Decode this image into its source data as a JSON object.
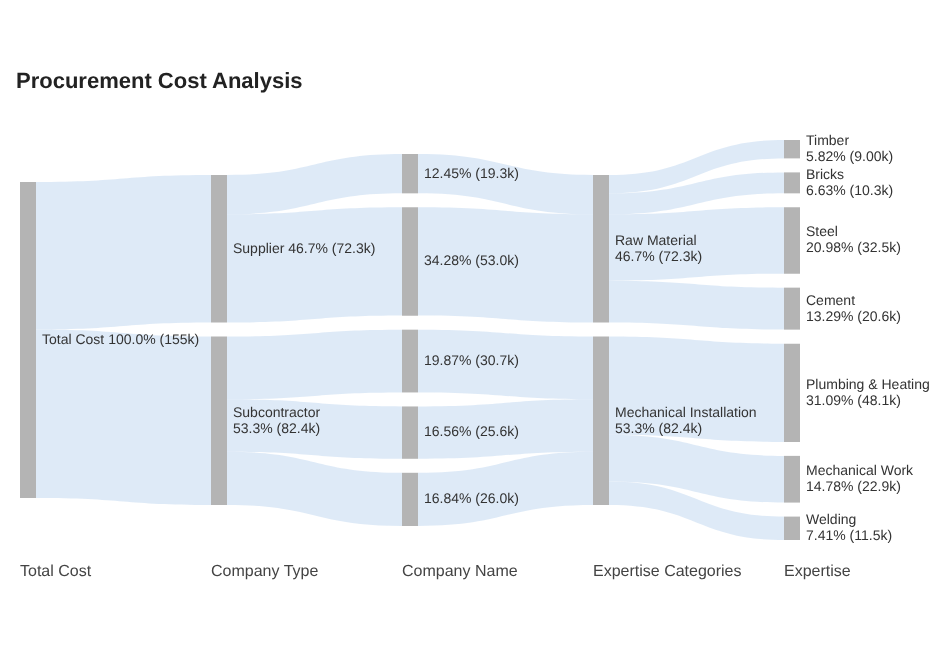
{
  "chart_data": {
    "type": "other",
    "title": "Procurement Cost Analysis",
    "categories": [
      "Total Cost",
      "Company Type",
      "Company Name",
      "Expertise Categories",
      "Expertise"
    ],
    "series": [
      {
        "name": "Total Cost",
        "values": [
          100.0,
          null,
          null,
          null,
          null
        ],
        "value_labels": [
          "100.0% (155k)",
          null,
          null,
          null,
          null
        ]
      },
      {
        "name": "Supplier",
        "values": [
          null,
          46.7,
          null,
          null,
          null
        ],
        "value_labels": [
          null,
          "46.7% (72.3k)",
          null,
          null,
          null
        ]
      },
      {
        "name": "Subcontractor",
        "values": [
          null,
          53.3,
          null,
          null,
          null
        ],
        "value_labels": [
          null,
          "53.3% (82.4k)",
          null,
          null,
          null
        ]
      },
      {
        "values": [
          null,
          null,
          12.45,
          null,
          null
        ],
        "value_labels": [
          null,
          null,
          "12.45% (19.3k)",
          null,
          null
        ]
      },
      {
        "values": [
          null,
          null,
          34.28,
          null,
          null
        ],
        "value_labels": [
          null,
          null,
          "34.28% (53.0k)",
          null,
          null
        ]
      },
      {
        "values": [
          null,
          null,
          19.87,
          null,
          null
        ],
        "value_labels": [
          null,
          null,
          "19.87% (30.7k)",
          null,
          null
        ]
      },
      {
        "values": [
          null,
          null,
          16.56,
          null,
          null
        ],
        "value_labels": [
          null,
          null,
          "16.56% (25.6k)",
          null,
          null
        ]
      },
      {
        "values": [
          null,
          null,
          16.84,
          null,
          null
        ],
        "value_labels": [
          null,
          null,
          "16.84% (26.0k)",
          null,
          null
        ]
      },
      {
        "name": "Raw Material",
        "values": [
          null,
          null,
          null,
          46.7,
          null
        ],
        "value_labels": [
          null,
          null,
          null,
          "46.7% (72.3k)",
          null
        ]
      },
      {
        "name": "Mechanical Installation",
        "values": [
          null,
          null,
          null,
          53.3,
          null
        ],
        "value_labels": [
          null,
          null,
          null,
          "53.3% (82.4k)",
          null
        ]
      },
      {
        "name": "Timber",
        "values": [
          null,
          null,
          null,
          null,
          5.82
        ],
        "value_labels": [
          null,
          null,
          null,
          null,
          "5.82% (9.00k)"
        ]
      },
      {
        "name": "Bricks",
        "values": [
          null,
          null,
          null,
          null,
          6.63
        ],
        "value_labels": [
          null,
          null,
          null,
          null,
          "6.63% (10.3k)"
        ]
      },
      {
        "name": "Steel",
        "values": [
          null,
          null,
          null,
          null,
          20.98
        ],
        "value_labels": [
          null,
          null,
          null,
          null,
          "20.98% (32.5k)"
        ]
      },
      {
        "name": "Cement",
        "values": [
          null,
          null,
          null,
          null,
          13.29
        ],
        "value_labels": [
          null,
          null,
          null,
          null,
          "13.29% (20.6k)"
        ]
      },
      {
        "name": "Plumbing & Heating",
        "values": [
          null,
          null,
          null,
          null,
          31.09
        ],
        "value_labels": [
          null,
          null,
          null,
          null,
          "31.09% (48.1k)"
        ]
      },
      {
        "name": "Mechanical Work",
        "values": [
          null,
          null,
          null,
          null,
          14.78
        ],
        "value_labels": [
          null,
          null,
          null,
          null,
          "14.78% (22.9k)"
        ]
      },
      {
        "name": "Welding",
        "values": [
          null,
          null,
          null,
          null,
          7.41
        ],
        "value_labels": [
          null,
          null,
          null,
          null,
          "7.41% (11.5k)"
        ]
      }
    ]
  }
}
